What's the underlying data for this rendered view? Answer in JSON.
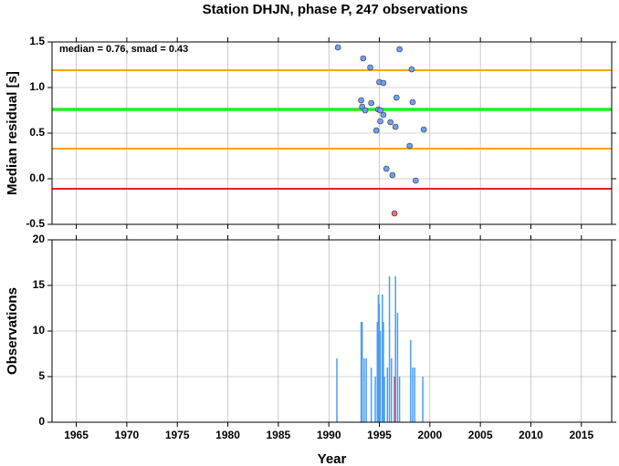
{
  "chart_data": [
    {
      "type": "scatter",
      "title": "Station DHJN, phase P, 247 observations",
      "ylabel": "Median residual [s]",
      "annotation": "median = 0.76, smad = 0.43",
      "xlim": [
        1962.6,
        2018
      ],
      "xticks": [
        1965,
        1970,
        1975,
        1980,
        1985,
        1990,
        1995,
        2000,
        2005,
        2010,
        2015
      ],
      "ylim": [
        -0.5,
        1.5
      ],
      "yticks": [
        -0.5,
        {
          "value": 0,
          "label": "0.0"
        },
        0.5,
        {
          "value": 1,
          "label": "1.0"
        },
        1.5
      ],
      "grid": true,
      "hlines": [
        {
          "value": 1.19,
          "color": "#ffa500"
        },
        {
          "value": 0.76,
          "color": "#22ee22"
        },
        {
          "value": 0.33,
          "color": "#ffa500"
        },
        {
          "value": -0.11,
          "color": "#e02020"
        }
      ],
      "x": [
        1990.9,
        1993.4,
        1994.1,
        1997.0,
        1998.2,
        1995.0,
        1995.4,
        1993.2,
        1994.2,
        1996.7,
        1998.3,
        1993.3,
        1993.6,
        1994.9,
        1995.1,
        1995.4,
        1995.1,
        1994.7,
        1996.1,
        1996.6,
        1999.4,
        1998.0,
        1995.7,
        1996.3,
        1998.6,
        1996.5
      ],
      "values": [
        1.44,
        1.32,
        1.22,
        1.42,
        1.2,
        1.06,
        1.05,
        0.86,
        0.83,
        0.89,
        0.84,
        0.79,
        0.75,
        0.76,
        0.75,
        0.7,
        0.63,
        0.53,
        0.62,
        0.57,
        0.54,
        0.36,
        0.11,
        0.04,
        -0.02,
        -0.38
      ],
      "colors": [
        "#6f9ff5",
        "#6f9ff5",
        "#6f9ff5",
        "#6f9ff5",
        "#6f9ff5",
        "#6f9ff5",
        "#6f9ff5",
        "#6f9ff5",
        "#6f9ff5",
        "#6f9ff5",
        "#6f9ff5",
        "#6f9ff5",
        "#6f9ff5",
        "#6f9ff5",
        "#6f9ff5",
        "#6f9ff5",
        "#6f9ff5",
        "#6f9ff5",
        "#6f9ff5",
        "#6f9ff5",
        "#6f9ff5",
        "#6f9ff5",
        "#6f9ff5",
        "#6f9ff5",
        "#6f9ff5",
        "#f07070"
      ]
    },
    {
      "type": "bar",
      "ylabel": "Observations",
      "xlabel": "Year",
      "xlim": [
        1962.6,
        2018
      ],
      "xticks": [
        1965,
        1970,
        1975,
        1980,
        1985,
        1990,
        1995,
        2000,
        2005,
        2010,
        2015
      ],
      "ylim": [
        0,
        20
      ],
      "yticks": [
        0,
        5,
        10,
        15,
        20
      ],
      "grid": true,
      "x": [
        1990.8,
        1993.2,
        1993.3,
        1993.5,
        1993.7,
        1994.2,
        1994.6,
        1994.8,
        1994.9,
        1995.0,
        1995.1,
        1995.3,
        1995.4,
        1995.5,
        1995.8,
        1996.0,
        1996.2,
        1996.5,
        1996.6,
        1996.8,
        1997.0,
        1998.1,
        1998.3,
        1998.5,
        1999.3
      ],
      "values": [
        7,
        11,
        11,
        7,
        7,
        6,
        5,
        11,
        14,
        13,
        10,
        14,
        11,
        5,
        6,
        16,
        7,
        5,
        16,
        12,
        5,
        9,
        6,
        6,
        5
      ],
      "colors": [
        "#4a9ef0",
        "#4a9ef0",
        "#4a9ef0",
        "#4a9ef0",
        "#4a9ef0",
        "#4a9ef0",
        "#4a9ef0",
        "#4a9ef0",
        "#4a9ef0",
        "#4a9ef0",
        "#4a9ef0",
        "#4a9ef0",
        "#4a9ef0",
        "#4a9ef0",
        "#4a9ef0",
        "#4a9ef0",
        "#4a9ef0",
        "#e03030",
        "#4a9ef0",
        "#4a9ef0",
        "#4a9ef0",
        "#4a9ef0",
        "#4a9ef0",
        "#4a9ef0",
        "#4a9ef0"
      ]
    }
  ]
}
